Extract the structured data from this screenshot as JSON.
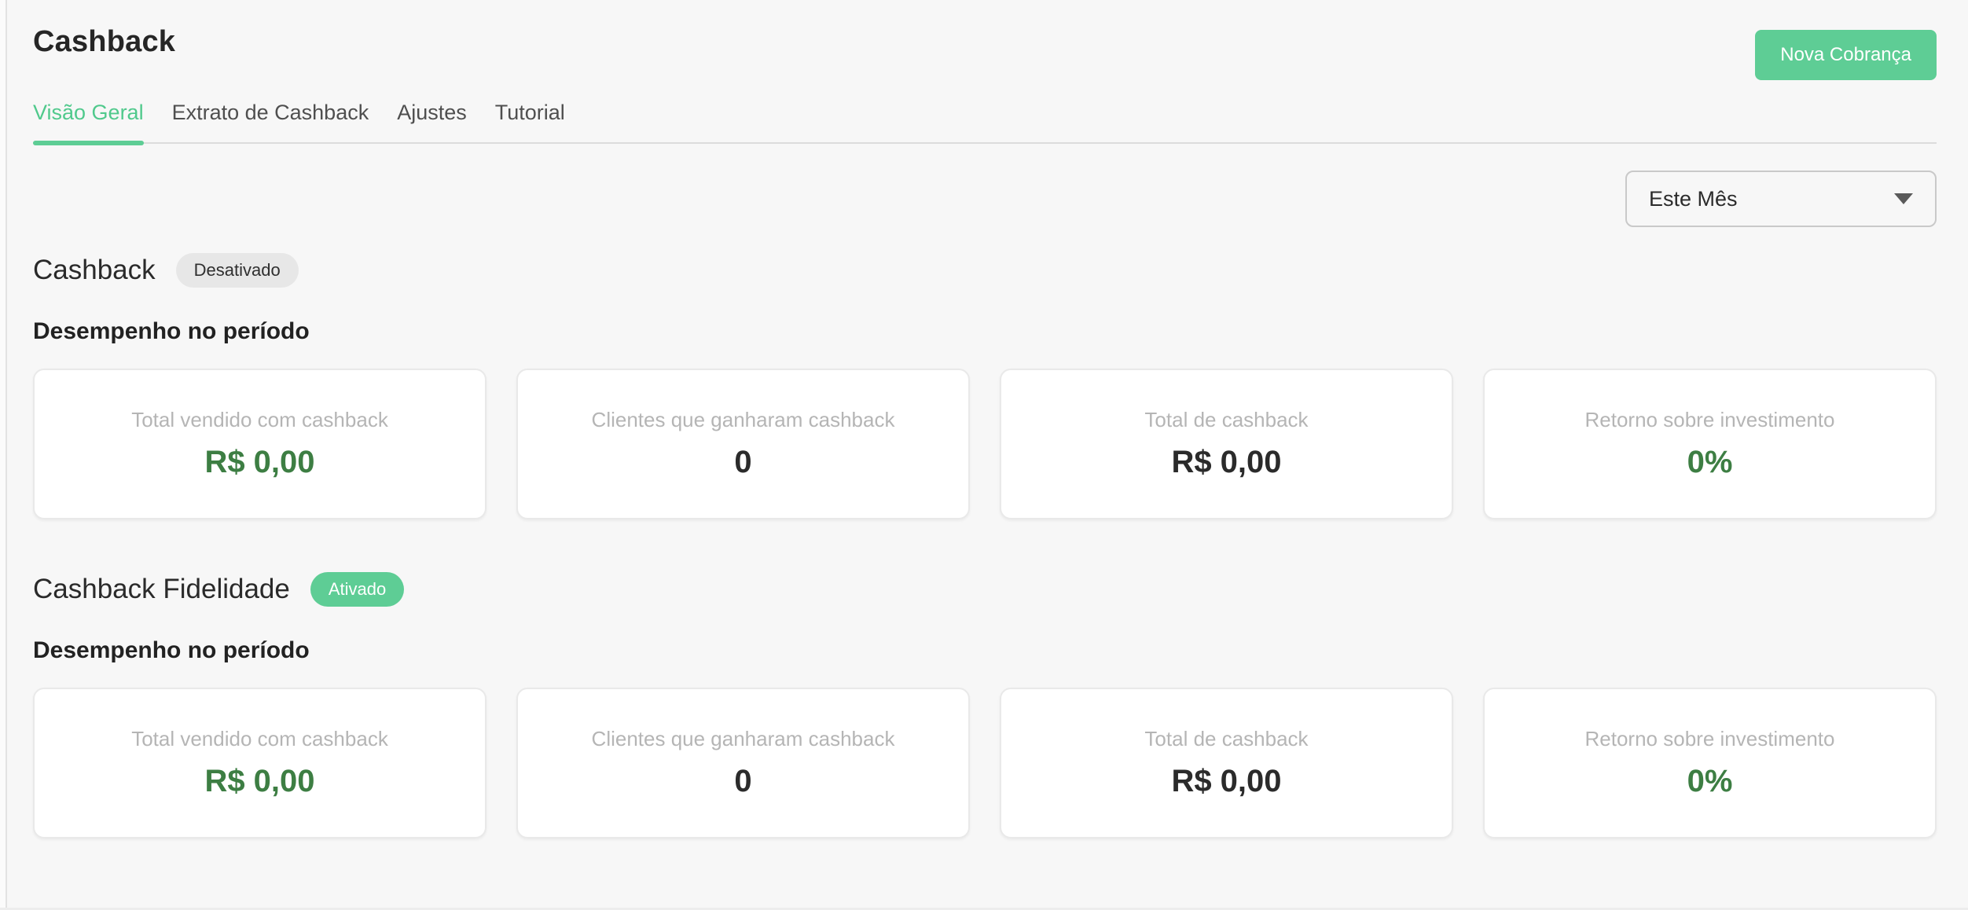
{
  "colors": {
    "accent_green": "#5ECD95",
    "accent_text_green": "#50C98C",
    "value_green": "#3D7E43",
    "badge_inactive_bg": "#E7E7E7",
    "background": "#F7F7F7"
  },
  "header": {
    "title": "Cashback",
    "new_charge_button": "Nova Cobrança"
  },
  "tabs": [
    {
      "label": "Visão Geral",
      "state": "active"
    },
    {
      "label": "Extrato de Cashback",
      "state": "inactive"
    },
    {
      "label": "Ajustes",
      "state": "inactive"
    },
    {
      "label": "Tutorial",
      "state": "inactive"
    }
  ],
  "filter": {
    "selected": "Este Mês",
    "caret_icon": "chevron-down"
  },
  "sections": [
    {
      "title": "Cashback",
      "badge": {
        "label": "Desativado",
        "state": "inactive"
      },
      "subtitle": "Desempenho no período",
      "cards": [
        {
          "label": "Total vendido com cashback",
          "value": "R$ 0,00",
          "value_color": "green"
        },
        {
          "label": "Clientes que ganharam cashback",
          "value": "0",
          "value_color": "dark"
        },
        {
          "label": "Total de cashback",
          "value": "R$ 0,00",
          "value_color": "dark"
        },
        {
          "label": "Retorno sobre investimento",
          "value": "0%",
          "value_color": "green"
        }
      ]
    },
    {
      "title": "Cashback Fidelidade",
      "badge": {
        "label": "Ativado",
        "state": "active"
      },
      "subtitle": "Desempenho no período",
      "cards": [
        {
          "label": "Total vendido com cashback",
          "value": "R$ 0,00",
          "value_color": "green"
        },
        {
          "label": "Clientes que ganharam cashback",
          "value": "0",
          "value_color": "dark"
        },
        {
          "label": "Total de cashback",
          "value": "R$ 0,00",
          "value_color": "dark"
        },
        {
          "label": "Retorno sobre investimento",
          "value": "0%",
          "value_color": "green"
        }
      ]
    }
  ]
}
